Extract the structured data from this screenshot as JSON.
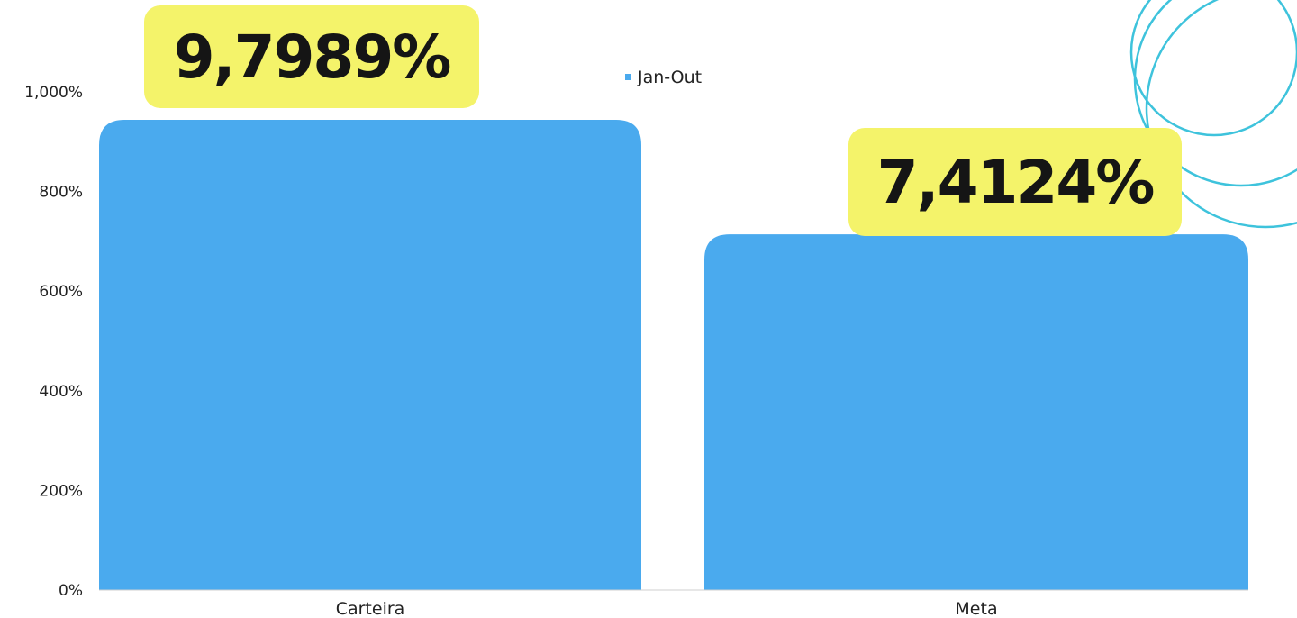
{
  "chart_data": {
    "type": "bar",
    "categories": [
      "Carteira",
      "Meta"
    ],
    "series": [
      {
        "name": "Jan-Out",
        "values": [
          9.7989,
          7.4124
        ],
        "color": "#4aaaee"
      }
    ],
    "callouts": [
      "9,7989%",
      "7,4124%"
    ],
    "callout_color": "#f4f36a",
    "ylim": [
      0,
      1100
    ],
    "yticks": [
      {
        "value": 0,
        "label": "0%"
      },
      {
        "value": 200,
        "label": "200%"
      },
      {
        "value": 400,
        "label": "400%"
      },
      {
        "value": 600,
        "label": "600%"
      },
      {
        "value": 800,
        "label": "800%"
      },
      {
        "value": 1000,
        "label": "1,000%"
      }
    ],
    "grid": false,
    "legend_position": "top-center",
    "decoration_color": "#3ec3dc"
  }
}
